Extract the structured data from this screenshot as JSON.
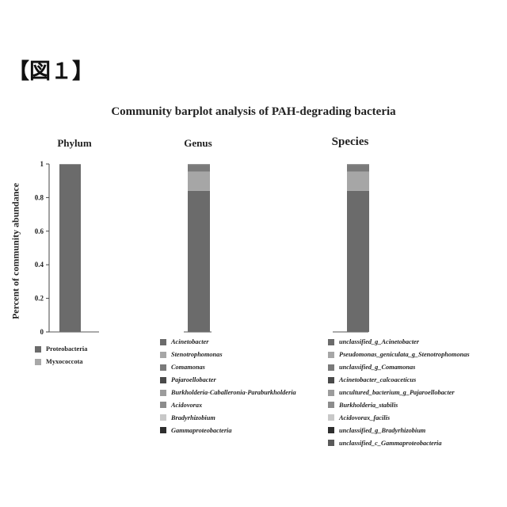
{
  "figure_label": "【図１】",
  "chart_data": {
    "type": "bar",
    "stacked": true,
    "title": "Community barplot analysis of PAH-degrading bacteria",
    "ylabel": "Percent of community abundance",
    "ylim": [
      0,
      1
    ],
    "yticks": [
      "0",
      "0.2",
      "0.4",
      "0.6",
      "0.8",
      "1"
    ],
    "panels": [
      {
        "title": "Phylum",
        "series": [
          {
            "name": "Proteobacteria",
            "value": 0.998,
            "color": "#6b6b6b"
          },
          {
            "name": "Myxococcota",
            "value": 0.002,
            "color": "#a8a8a8"
          }
        ]
      },
      {
        "title": "Genus",
        "series": [
          {
            "name": "Acinetobacter",
            "value": 0.84,
            "color": "#6b6b6b"
          },
          {
            "name": "Stenotrophomonas",
            "value": 0.115,
            "color": "#a6a6a6"
          },
          {
            "name": "Comamonas",
            "value": 0.04,
            "color": "#7a7a7a"
          },
          {
            "name": "Pajaroellobacter",
            "value": 0.002,
            "color": "#4a4a4a"
          },
          {
            "name": "Burkholderia-Caballeronia-Paraburkholderia",
            "value": 0.001,
            "color": "#9c9c9c"
          },
          {
            "name": "Acidovorax",
            "value": 0.001,
            "color": "#8c8c8c"
          },
          {
            "name": "Bradyrhizobium",
            "value": 0.0005,
            "color": "#c8c8c8"
          },
          {
            "name": "Gammaproteobacteria",
            "value": 0.0005,
            "color": "#2e2e2e"
          }
        ]
      },
      {
        "title": "Species",
        "series": [
          {
            "name": "unclassified_g_Acinetobacter",
            "value": 0.84,
            "color": "#6b6b6b"
          },
          {
            "name": "Pseudomonas_geniculata_g_Stenotrophomonas",
            "value": 0.115,
            "color": "#a6a6a6"
          },
          {
            "name": "unclassified_g_Comamonas",
            "value": 0.04,
            "color": "#7a7a7a"
          },
          {
            "name": "Acinetobacter_calcoaceticus",
            "value": 0.002,
            "color": "#4a4a4a"
          },
          {
            "name": "uncultured_bacterium_g_Pajaroellobacter",
            "value": 0.001,
            "color": "#9c9c9c"
          },
          {
            "name": "Burkholderia_stabilis",
            "value": 0.001,
            "color": "#8c8c8c"
          },
          {
            "name": "Acidovorax_facilis",
            "value": 0.0005,
            "color": "#c8c8c8"
          },
          {
            "name": "unclassified_g_Bradyrhizobium",
            "value": 0.0003,
            "color": "#2e2e2e"
          },
          {
            "name": "unclassified_c_Gammaproteobacteria",
            "value": 0.0002,
            "color": "#5a5a5a"
          }
        ]
      }
    ]
  }
}
